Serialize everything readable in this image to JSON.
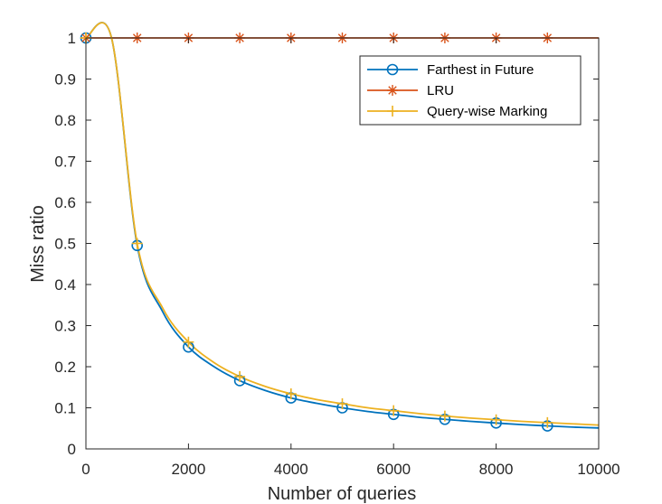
{
  "chart_data": {
    "type": "line",
    "title": "",
    "xlabel": "Number of queries",
    "ylabel": "Miss ratio",
    "xlim": [
      0,
      10000
    ],
    "ylim": [
      0,
      1
    ],
    "xticks": [
      0,
      2000,
      4000,
      6000,
      8000,
      10000
    ],
    "xtick_labels": [
      "0",
      "2000",
      "4000",
      "6000",
      "8000",
      "10000"
    ],
    "yticks": [
      0,
      0.1,
      0.2,
      0.3,
      0.4,
      0.5,
      0.6,
      0.7,
      0.8,
      0.9,
      1
    ],
    "ytick_labels": [
      "0",
      "0.1",
      "0.2",
      "0.3",
      "0.4",
      "0.5",
      "0.6",
      "0.7",
      "0.8",
      "0.9",
      "1"
    ],
    "grid": false,
    "legend_position": "top-right",
    "series": [
      {
        "name": "Farthest in Future",
        "color": "#0072BD",
        "marker": "circle",
        "x": [
          0,
          500,
          1000,
          1500,
          2000,
          2500,
          3000,
          3500,
          4000,
          4500,
          5000,
          5500,
          6000,
          6500,
          7000,
          7500,
          8000,
          8500,
          9000,
          9500,
          10000
        ],
        "y": [
          1,
          1,
          0.495,
          0.333,
          0.248,
          0.2,
          0.166,
          0.142,
          0.124,
          0.111,
          0.1,
          0.091,
          0.084,
          0.077,
          0.072,
          0.067,
          0.063,
          0.059,
          0.056,
          0.053,
          0.051
        ],
        "marker_x": [
          0,
          1000,
          2000,
          3000,
          4000,
          5000,
          6000,
          7000,
          8000,
          9000
        ],
        "marker_y": [
          1,
          0.495,
          0.248,
          0.166,
          0.124,
          0.1,
          0.084,
          0.072,
          0.063,
          0.056
        ]
      },
      {
        "name": "LRU",
        "color": "#D95319",
        "marker": "asterisk",
        "x": [
          0,
          10000
        ],
        "y": [
          1,
          1
        ],
        "marker_x": [
          0,
          1000,
          2000,
          3000,
          4000,
          5000,
          6000,
          7000,
          8000,
          9000
        ],
        "marker_y": [
          1,
          1,
          1,
          1,
          1,
          1,
          1,
          1,
          1,
          1
        ]
      },
      {
        "name": "Query-wise Marking",
        "color": "#EDB120",
        "marker": "plus",
        "x": [
          0,
          500,
          1000,
          1500,
          2000,
          2500,
          3000,
          3500,
          4000,
          4500,
          5000,
          5500,
          6000,
          6500,
          7000,
          7500,
          8000,
          8500,
          9000,
          9500,
          10000
        ],
        "y": [
          1,
          1,
          0.5,
          0.342,
          0.26,
          0.21,
          0.176,
          0.152,
          0.134,
          0.12,
          0.11,
          0.1,
          0.093,
          0.086,
          0.08,
          0.075,
          0.071,
          0.067,
          0.064,
          0.061,
          0.058
        ],
        "marker_x": [
          0,
          1000,
          2000,
          3000,
          4000,
          5000,
          6000,
          7000,
          8000,
          9000
        ],
        "marker_y": [
          1,
          0.5,
          0.26,
          0.176,
          0.134,
          0.11,
          0.093,
          0.08,
          0.071,
          0.064
        ]
      }
    ]
  }
}
